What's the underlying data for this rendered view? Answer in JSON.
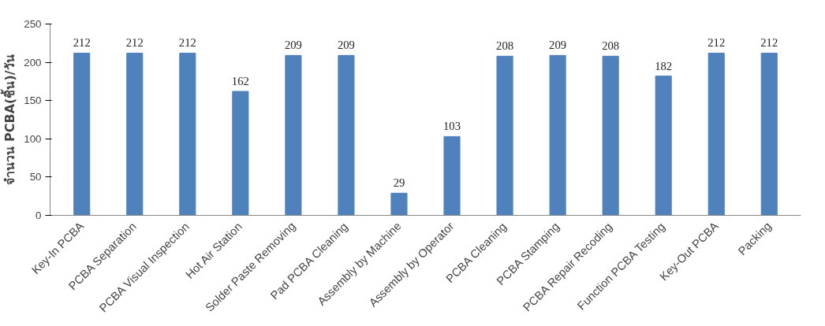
{
  "chart_data": {
    "type": "bar",
    "ylabel": "จำนวน PCBA(ชิ้น)/วัน",
    "categories": [
      "Key-In PCBA",
      "PCBA Separation",
      "PCBA Visual Inspection",
      "Hot Air Station",
      "Solder Paste Removing",
      "Pad PCBA Cleaning",
      "Assembly by Machine",
      "Assembly by Operator",
      "PCBA Cleaning",
      "PCBA Stamping",
      "PCBA Repair Recoding",
      "Function PCBA Testing",
      "Key-Out PCBA",
      "Packing"
    ],
    "values": [
      212,
      212,
      212,
      162,
      209,
      209,
      29,
      103,
      208,
      209,
      208,
      182,
      212,
      212
    ],
    "color": "#4f81bd",
    "ylim": [
      0,
      250
    ],
    "yticks": [
      0,
      50,
      100,
      150,
      200,
      250
    ],
    "data_labels": true,
    "grid": false
  }
}
